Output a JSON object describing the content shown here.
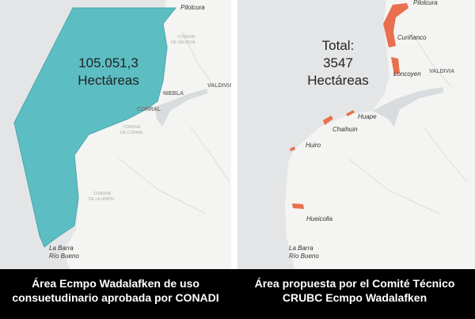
{
  "left_map": {
    "labels": [
      "Pilolcura",
      "COMUNA",
      "DE VALDIVIA",
      "VALDIVIA",
      "NIEBLA",
      "CORRAL",
      "COMUNA",
      "DE CORRAL",
      "COMUNA",
      "DE LA UNIÓN",
      "La Barra",
      "Río Bueno"
    ],
    "overlay": [
      "105.051,3",
      "Hectáreas"
    ],
    "caption": [
      "Área Ecmpo Wadalafken de uso",
      "consuetudinario aprobada por CONADI"
    ]
  },
  "right_map": {
    "labels": [
      "Pilolcura",
      "Curiñanco",
      "Loncoyen",
      "VALDIVIA",
      "Huape",
      "Chaihuin",
      "Huiro",
      "Hueicolla",
      "La Barra",
      "Río Bueno"
    ],
    "overlay": [
      "Total:",
      "3547",
      "Hectáreas"
    ],
    "caption": [
      "Área propuesta por el Comité Técnico",
      "CRUBC Ecmpo Wadalafken"
    ]
  }
}
